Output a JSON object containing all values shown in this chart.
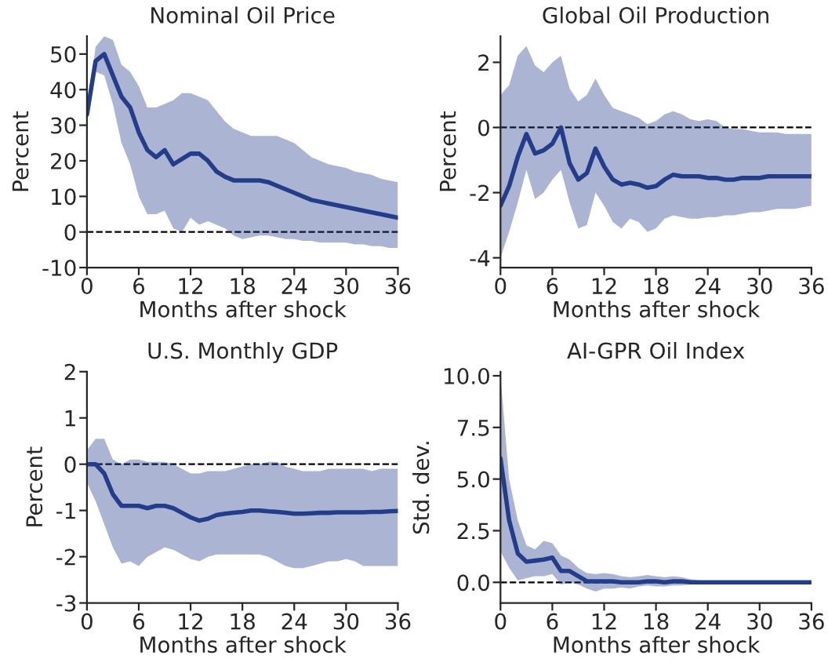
{
  "chart_data": [
    {
      "type": "line",
      "title": "Nominal Oil Price",
      "xlabel": "Months after shock",
      "ylabel": "Percent",
      "xlim": [
        0,
        36
      ],
      "xticks": [
        0,
        6,
        12,
        18,
        24,
        30,
        36
      ],
      "ylim": [
        -10,
        55
      ],
      "yticks": [
        -10,
        0,
        10,
        20,
        30,
        40,
        50
      ],
      "grid": false,
      "legend": false,
      "x": [
        0,
        1,
        2,
        3,
        4,
        5,
        6,
        7,
        8,
        9,
        10,
        11,
        12,
        13,
        14,
        15,
        16,
        17,
        18,
        19,
        20,
        21,
        22,
        23,
        24,
        25,
        26,
        27,
        28,
        29,
        30,
        31,
        32,
        33,
        34,
        35,
        36
      ],
      "ref_lines": [
        {
          "axis": "y",
          "value": 0,
          "color": "#000000",
          "line_style": "dashed"
        }
      ],
      "series": [
        {
          "color": "#233d8b",
          "line_style": "solid",
          "values": [
            33,
            48,
            50,
            44,
            38,
            35,
            28,
            23,
            21,
            23,
            19,
            20.5,
            22,
            22,
            20,
            17,
            15.5,
            14.5,
            14.5,
            14.5,
            14.5,
            14,
            13,
            12,
            11,
            10,
            9,
            8.5,
            8,
            7.5,
            7,
            6.5,
            6,
            5.5,
            5,
            4.5,
            4
          ],
          "upper": [
            33,
            52,
            55,
            54,
            47,
            45,
            41,
            35,
            35,
            36,
            37,
            39,
            39,
            38,
            37,
            34,
            31,
            29,
            28,
            27,
            27,
            27,
            27,
            26,
            25,
            23,
            21,
            20,
            19,
            18.5,
            18,
            17,
            16.5,
            16,
            15,
            14.5,
            14
          ],
          "lower": [
            33,
            45,
            44,
            36,
            25,
            19,
            10,
            5,
            5,
            6,
            1,
            0,
            4,
            2,
            3,
            2,
            1,
            -1,
            -2,
            -1.5,
            -1,
            -1,
            -1.5,
            -2,
            -2,
            -2.5,
            -2.5,
            -3,
            -3,
            -3,
            -3,
            -3.5,
            -3.5,
            -4,
            -4,
            -4.5,
            -4.5
          ]
        }
      ]
    },
    {
      "type": "line",
      "title": "Global Oil Production",
      "xlabel": "Months after shock",
      "ylabel": "Percent",
      "xlim": [
        0,
        36
      ],
      "xticks": [
        0,
        6,
        12,
        18,
        24,
        30,
        36
      ],
      "ylim": [
        -4.3,
        2.8
      ],
      "yticks": [
        -4,
        -2,
        0,
        2
      ],
      "grid": false,
      "legend": false,
      "x": [
        0,
        1,
        2,
        3,
        4,
        5,
        6,
        7,
        8,
        9,
        10,
        11,
        12,
        13,
        14,
        15,
        16,
        17,
        18,
        19,
        20,
        21,
        22,
        23,
        24,
        25,
        26,
        27,
        28,
        29,
        30,
        31,
        32,
        33,
        34,
        35,
        36
      ],
      "ref_lines": [
        {
          "axis": "y",
          "value": 0,
          "color": "#000000",
          "line_style": "dashed"
        }
      ],
      "series": [
        {
          "color": "#233d8b",
          "line_style": "solid",
          "values": [
            -2.4,
            -1.8,
            -0.9,
            -0.2,
            -0.8,
            -0.7,
            -0.5,
            0,
            -1.1,
            -1.6,
            -1.4,
            -0.65,
            -1.2,
            -1.6,
            -1.75,
            -1.7,
            -1.75,
            -1.85,
            -1.8,
            -1.6,
            -1.45,
            -1.5,
            -1.5,
            -1.5,
            -1.55,
            -1.55,
            -1.6,
            -1.6,
            -1.55,
            -1.55,
            -1.55,
            -1.5,
            -1.5,
            -1.5,
            -1.5,
            -1.5,
            -1.5
          ],
          "upper": [
            1,
            1.3,
            2.2,
            2.5,
            1.9,
            1.7,
            2,
            2.2,
            1.2,
            0.8,
            1,
            1.5,
            1,
            0.6,
            0.5,
            0.4,
            0.3,
            0.1,
            0.2,
            0.4,
            0.5,
            0.4,
            0.25,
            0.2,
            0.25,
            0.2,
            0,
            -0.05,
            -0.05,
            -0.1,
            -0.15,
            -0.15,
            -0.15,
            -0.2,
            -0.2,
            -0.2,
            -0.2
          ],
          "lower": [
            -4,
            -3.2,
            -2.3,
            -1.3,
            -2.2,
            -2,
            -1.6,
            -1.3,
            -2.3,
            -3.1,
            -3,
            -2,
            -2.4,
            -2.9,
            -3.1,
            -2.8,
            -2.9,
            -3.2,
            -3.1,
            -2.8,
            -2.7,
            -2.75,
            -2.8,
            -2.8,
            -2.75,
            -2.75,
            -2.7,
            -2.7,
            -2.65,
            -2.6,
            -2.6,
            -2.55,
            -2.5,
            -2.5,
            -2.5,
            -2.45,
            -2.4
          ]
        }
      ]
    },
    {
      "type": "line",
      "title": "U.S. Monthly GDP",
      "xlabel": "Months after shock",
      "ylabel": "Percent",
      "xlim": [
        0,
        36
      ],
      "xticks": [
        0,
        6,
        12,
        18,
        24,
        30,
        36
      ],
      "ylim": [
        -3,
        2
      ],
      "yticks": [
        -3,
        -2,
        -1,
        0,
        1,
        2
      ],
      "grid": false,
      "legend": false,
      "x": [
        0,
        1,
        2,
        3,
        4,
        5,
        6,
        7,
        8,
        9,
        10,
        11,
        12,
        13,
        14,
        15,
        16,
        17,
        18,
        19,
        20,
        21,
        22,
        23,
        24,
        25,
        26,
        27,
        28,
        29,
        30,
        31,
        32,
        33,
        34,
        35,
        36
      ],
      "ref_lines": [
        {
          "axis": "y",
          "value": 0,
          "color": "#000000",
          "line_style": "dashed"
        }
      ],
      "series": [
        {
          "color": "#233d8b",
          "line_style": "solid",
          "values": [
            0,
            0,
            -0.2,
            -0.65,
            -0.9,
            -0.9,
            -0.9,
            -0.95,
            -0.9,
            -0.9,
            -0.95,
            -1.05,
            -1.15,
            -1.22,
            -1.18,
            -1.1,
            -1.07,
            -1.05,
            -1.03,
            -1,
            -1,
            -1.02,
            -1.03,
            -1.05,
            -1.07,
            -1.07,
            -1.06,
            -1.05,
            -1.05,
            -1.04,
            -1.04,
            -1.04,
            -1.04,
            -1.03,
            -1.03,
            -1.02,
            -1.01
          ],
          "upper": [
            0.3,
            0.55,
            0.55,
            0.1,
            0,
            0.1,
            0.1,
            0.05,
            0.05,
            0.05,
            0,
            -0.1,
            -0.2,
            -0.2,
            -0.15,
            -0.15,
            -0.15,
            -0.1,
            -0.05,
            0,
            0,
            0.05,
            0.05,
            -0.05,
            -0.1,
            -0.15,
            -0.15,
            -0.15,
            -0.1,
            -0.1,
            -0.1,
            -0.1,
            -0.1,
            -0.15,
            -0.1,
            -0.1,
            -0.1
          ],
          "lower": [
            -0.4,
            -0.8,
            -1.3,
            -1.8,
            -2.15,
            -2.1,
            -2.2,
            -2,
            -1.9,
            -1.8,
            -1.85,
            -1.95,
            -2.05,
            -2.1,
            -2,
            -1.95,
            -1.95,
            -1.95,
            -1.95,
            -1.95,
            -1.95,
            -2,
            -2.1,
            -2.2,
            -2.25,
            -2.25,
            -2.2,
            -2.15,
            -2.1,
            -2.1,
            -2.05,
            -2.1,
            -2.2,
            -2.2,
            -2.2,
            -2.2,
            -2.2
          ]
        }
      ]
    },
    {
      "type": "line",
      "title": "AI-GPR Oil Index",
      "xlabel": "Months after shock",
      "ylabel": "Std. dev.",
      "xlim": [
        0,
        36
      ],
      "xticks": [
        0,
        6,
        12,
        18,
        24,
        30,
        36
      ],
      "ylim": [
        -1,
        10.2
      ],
      "yticks": [
        {
          "value": 0,
          "label": "0.0"
        },
        2.5,
        {
          "value": 5,
          "label": "5.0"
        },
        7.5,
        {
          "value": 10,
          "label": "10.0"
        }
      ],
      "grid": false,
      "legend": false,
      "x": [
        0,
        1,
        2,
        3,
        4,
        5,
        6,
        7,
        8,
        9,
        10,
        11,
        12,
        13,
        14,
        15,
        16,
        17,
        18,
        19,
        20,
        21,
        22,
        23,
        24,
        25,
        26,
        27,
        28,
        29,
        30,
        31,
        32,
        33,
        34,
        35,
        36
      ],
      "ref_lines": [
        {
          "axis": "y",
          "value": 0,
          "color": "#000000",
          "line_style": "dashed"
        }
      ],
      "series": [
        {
          "color": "#233d8b",
          "line_style": "solid",
          "values": [
            6,
            3,
            1.4,
            1,
            1.05,
            1.1,
            1.2,
            0.55,
            0.55,
            0.3,
            0.05,
            0.05,
            0.05,
            0.05,
            0,
            0,
            0,
            0.05,
            0.05,
            0,
            0.05,
            0.05,
            0,
            0,
            0,
            0,
            0,
            0,
            0,
            0,
            0,
            0,
            0,
            0,
            0,
            0,
            0
          ],
          "upper": [
            10,
            5,
            3,
            1.8,
            1.6,
            2,
            1.9,
            1.3,
            1.1,
            0.7,
            0.45,
            0.4,
            0.45,
            0.4,
            0.3,
            0.25,
            0.3,
            0.35,
            0.3,
            0.25,
            0.3,
            0.25,
            0.15,
            0.1,
            0.05,
            0.05,
            0.05,
            0.05,
            0.05,
            0.05,
            0.05,
            0.05,
            0.05,
            0.05,
            0.05,
            0.05,
            0.05
          ],
          "lower": [
            1.5,
            0.7,
            0.1,
            0.2,
            0.3,
            0.3,
            0.4,
            -0.1,
            0,
            -0.1,
            -0.3,
            -0.45,
            -0.3,
            -0.3,
            -0.25,
            -0.3,
            -0.2,
            -0.15,
            -0.2,
            -0.2,
            -0.15,
            -0.15,
            -0.1,
            -0.1,
            -0.05,
            -0.05,
            -0.05,
            -0.05,
            -0.05,
            -0.05,
            -0.05,
            -0.05,
            -0.05,
            -0.05,
            -0.05,
            -0.05,
            -0.05
          ]
        }
      ]
    }
  ]
}
